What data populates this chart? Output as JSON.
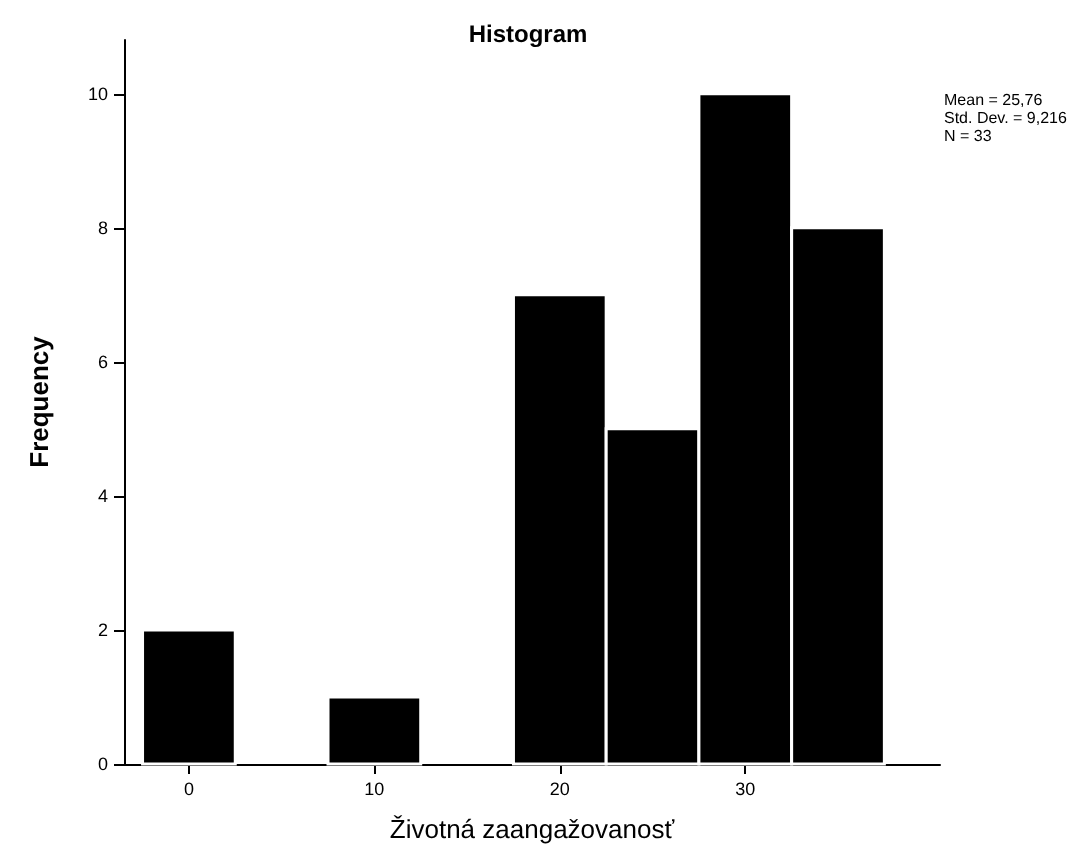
{
  "chart_data": {
    "type": "histogram",
    "title": "Histogram",
    "xlabel": "Životná zaangažovanosť",
    "ylabel": "Frequency",
    "bins": [
      -2.5,
      2.5,
      7.5,
      12.5,
      17.5,
      22.5,
      27.5,
      32.5,
      37.5
    ],
    "values": [
      2,
      0,
      1,
      0,
      7,
      5,
      10,
      8
    ],
    "color": "#000000",
    "xlim": [
      -3.5,
      40.5
    ],
    "xticks": [
      0,
      10,
      20,
      30
    ],
    "ylim": [
      0,
      10.8
    ],
    "yticks": [
      0,
      2,
      4,
      6,
      8,
      10
    ],
    "grid": false,
    "annotations": [
      "Mean = 25,76",
      "Std. Dev. = 9,216",
      "N = 33"
    ]
  }
}
